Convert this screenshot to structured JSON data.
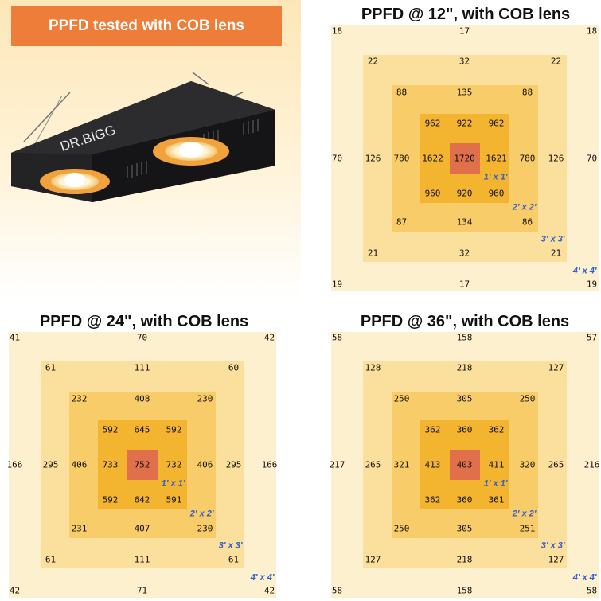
{
  "banner": {
    "text": "PPFD tested with COB lens"
  },
  "photo": {
    "brand_text": "DR.BIGG"
  },
  "colors": {
    "ring4": "#fdf0cf",
    "ring3": "#fbdf9c",
    "ring2": "#f8cc69",
    "ring1": "#f3b430",
    "center": "#e0704b",
    "label": "#2f5fd0",
    "banner": "#ee7d3a"
  },
  "charts": [
    {
      "title": "PPFD @ 12\", with COB lens",
      "center": "1720",
      "r1": [
        "962",
        "922",
        "962",
        "1622",
        "1621",
        "960",
        "920",
        "960"
      ],
      "r2": [
        "88",
        "135",
        "88",
        "780",
        "780",
        "87",
        "134",
        "86"
      ],
      "r3": [
        "22",
        "32",
        "22",
        "126",
        "126",
        "21",
        "32",
        "21"
      ],
      "r4": [
        "18",
        "17",
        "18",
        "70",
        "70",
        "19",
        "17",
        "19"
      ],
      "labels": [
        "1' x 1'",
        "2' x 2'",
        "3' x 3'",
        "4' x 4'"
      ]
    },
    {
      "title": "PPFD @ 24\", with COB lens",
      "center": "752",
      "r1": [
        "592",
        "645",
        "592",
        "733",
        "732",
        "592",
        "642",
        "591"
      ],
      "r2": [
        "232",
        "408",
        "230",
        "406",
        "406",
        "231",
        "407",
        "230"
      ],
      "r3": [
        "61",
        "111",
        "60",
        "295",
        "295",
        "61",
        "111",
        "61"
      ],
      "r4": [
        "41",
        "70",
        "42",
        "166",
        "166",
        "42",
        "71",
        "42"
      ],
      "labels": [
        "1' x 1'",
        "2' x 2'",
        "3' x 3'",
        "4' x 4'"
      ]
    },
    {
      "title": "PPFD @ 36\", with COB lens",
      "center": "403",
      "r1": [
        "362",
        "360",
        "362",
        "413",
        "411",
        "362",
        "360",
        "361"
      ],
      "r2": [
        "250",
        "305",
        "250",
        "321",
        "320",
        "250",
        "305",
        "251"
      ],
      "r3": [
        "128",
        "218",
        "127",
        "265",
        "265",
        "127",
        "218",
        "127"
      ],
      "r4": [
        "58",
        "158",
        "57",
        "217",
        "216",
        "58",
        "158",
        "58"
      ],
      "labels": [
        "1' x 1'",
        "2' x 2'",
        "3' x 3'",
        "4' x 4'"
      ]
    }
  ]
}
